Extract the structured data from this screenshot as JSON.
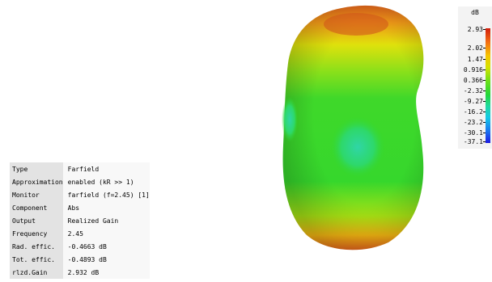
{
  "legend": {
    "unit": "dB",
    "ticks": [
      "2.93",
      "2.02",
      "1.47",
      "0.916",
      "0.366",
      "-2.32",
      "-9.27",
      "-16.2",
      "-23.2",
      "-30.1",
      "-37.1"
    ]
  },
  "info": {
    "rows": [
      {
        "label": "Type",
        "value": "Farfield"
      },
      {
        "label": "Approximation",
        "value": "enabled (kR >> 1)"
      },
      {
        "label": "Monitor",
        "value": "farfield (f=2.45) [1]"
      },
      {
        "label": "Component",
        "value": "Abs"
      },
      {
        "label": "Output",
        "value": "Realized Gain"
      },
      {
        "label": "Frequency",
        "value": "2.45"
      },
      {
        "label": "Rad. effic.",
        "value": "-0.4663 dB"
      },
      {
        "label": "Tot. effic.",
        "value": "-0.4893 dB"
      },
      {
        "label": "rlzd.Gain",
        "value": "2.932 dB"
      }
    ]
  },
  "colors": {
    "max_red": "#d21d0c",
    "mid_green": "#22d63a",
    "min_blue": "#1c1ae2"
  }
}
